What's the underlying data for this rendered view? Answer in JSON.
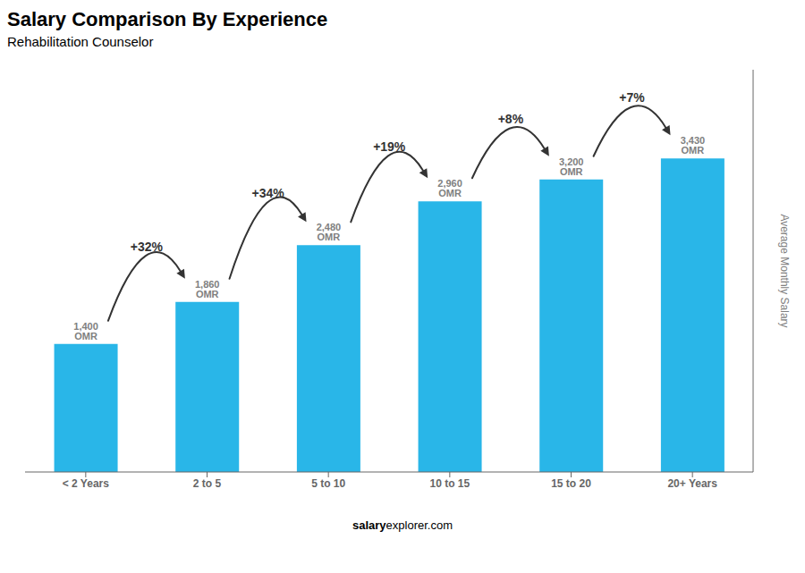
{
  "chart_data": {
    "type": "bar",
    "title": "Salary Comparison By Experience",
    "subtitle": "Rehabilitation Counselor",
    "categories": [
      "< 2 Years",
      "2 to 5",
      "5 to 10",
      "10 to 15",
      "15 to 20",
      "20+ Years"
    ],
    "values": [
      1400,
      1860,
      2480,
      2960,
      3200,
      3430
    ],
    "value_labels": [
      "1,400 OMR",
      "1,860 OMR",
      "2,480 OMR",
      "2,960 OMR",
      "3,200 OMR",
      "3,430 OMR"
    ],
    "data_labels": true,
    "color": "#29b6e8",
    "ylabel": "Average Monthly Salary",
    "ylim": [
      0,
      4400
    ],
    "tick_labels": "x",
    "annotations": [
      "+32%",
      "+34%",
      "+19%",
      "+8%",
      "+7%"
    ],
    "footer": [
      "salary",
      "explorer.com"
    ]
  }
}
